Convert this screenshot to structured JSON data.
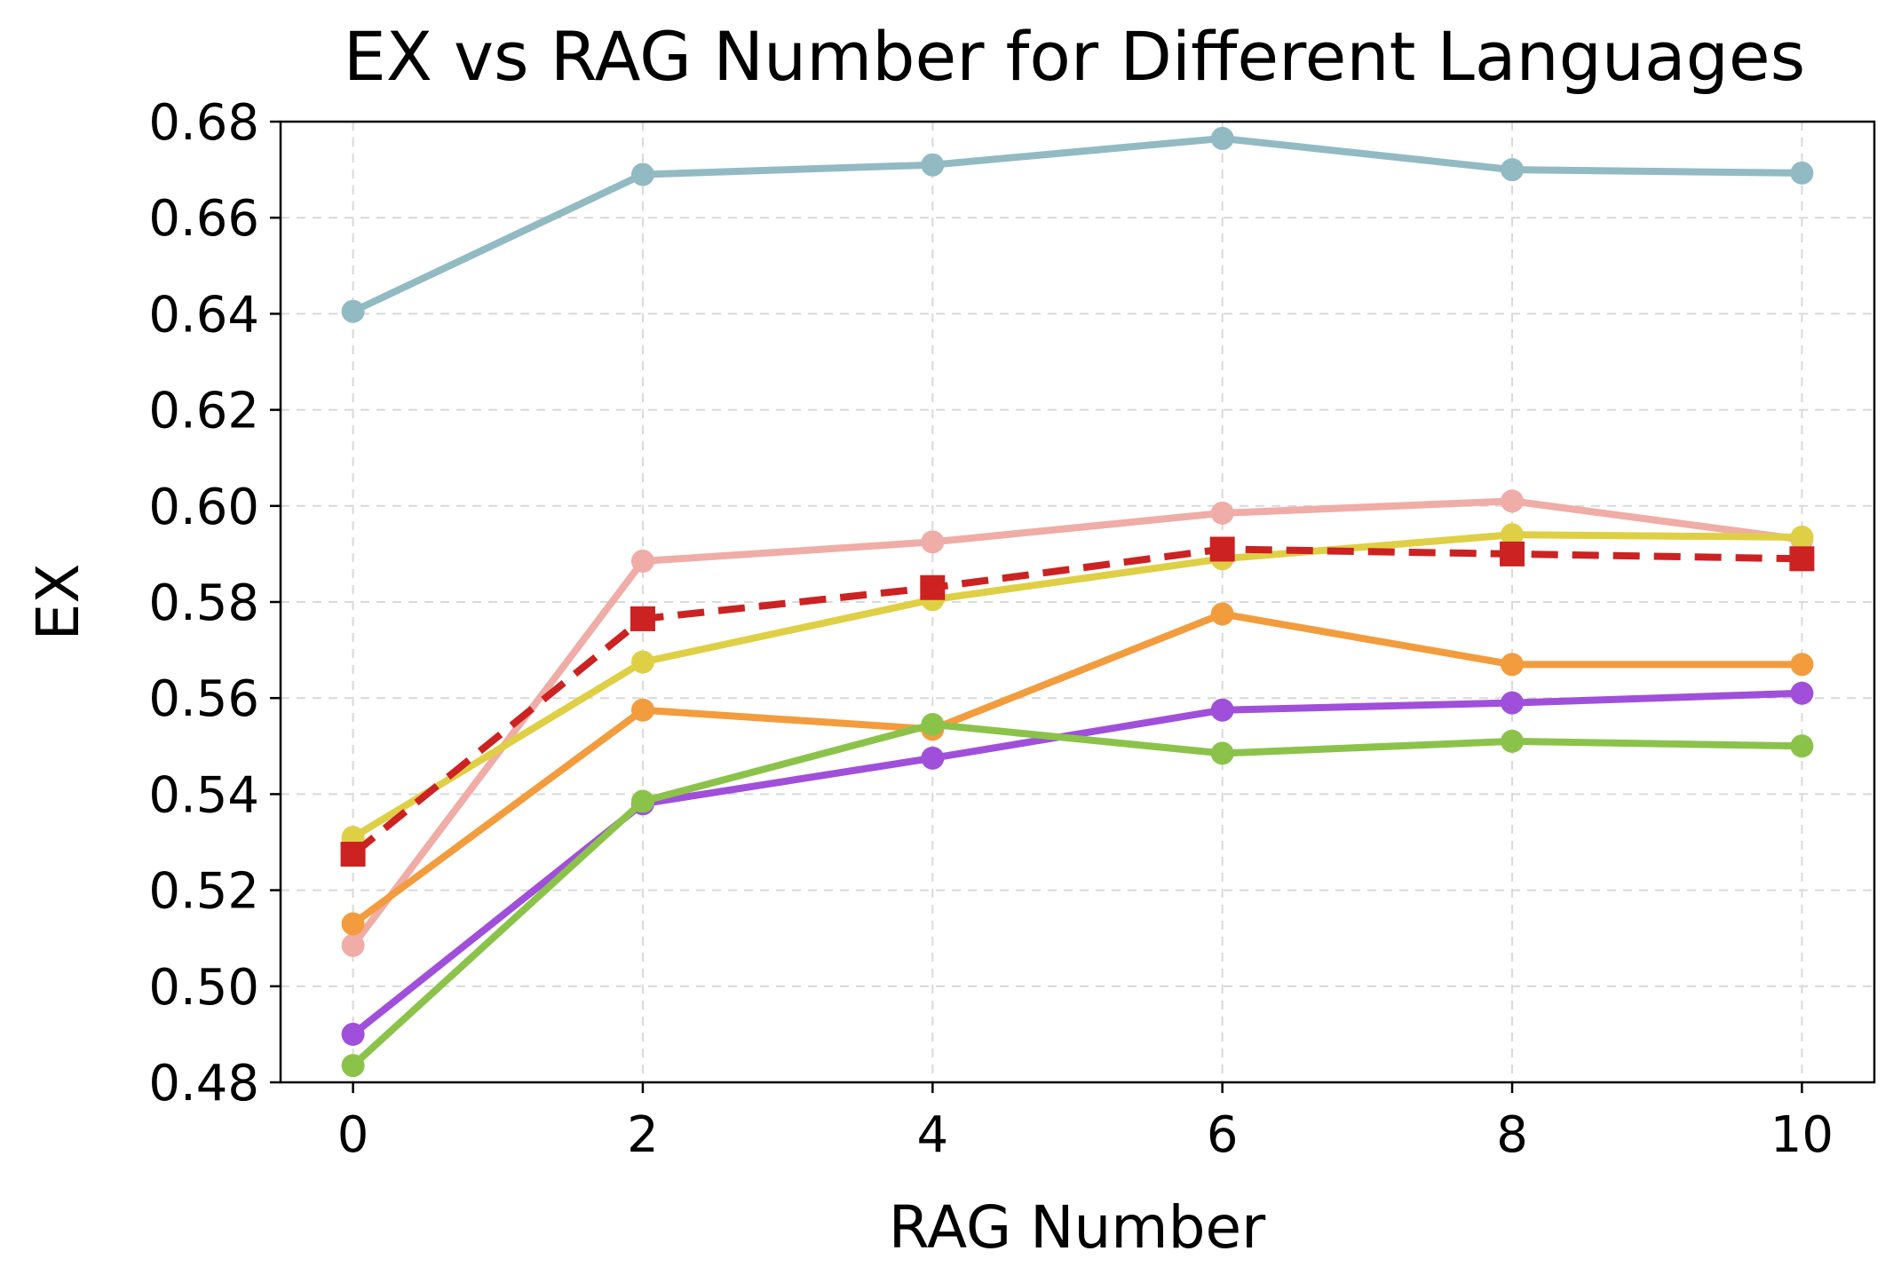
{
  "chart_data": {
    "type": "line",
    "title": "EX vs RAG Number for Different Languages",
    "xlabel": "RAG Number",
    "ylabel": "EX",
    "x": [
      0,
      2,
      4,
      6,
      8,
      10
    ],
    "xlim": [
      -0.5,
      10.5
    ],
    "ylim": [
      0.48,
      0.68
    ],
    "xticks": [
      "0",
      "2",
      "4",
      "6",
      "8",
      "10"
    ],
    "yticks": [
      "0.48",
      "0.50",
      "0.52",
      "0.54",
      "0.56",
      "0.58",
      "0.60",
      "0.62",
      "0.64",
      "0.66",
      "0.68"
    ],
    "grid": true,
    "legend": "none",
    "series": [
      {
        "color": "#92BAC3",
        "marker": "circle",
        "dashed": false,
        "values": [
          0.6405,
          0.669,
          0.671,
          0.6765,
          0.67,
          0.6693
        ]
      },
      {
        "color": "#F0ACA6",
        "marker": "circle",
        "dashed": false,
        "values": [
          0.5085,
          0.5885,
          0.5925,
          0.5985,
          0.601,
          0.593
        ]
      },
      {
        "color": "#DFCF45",
        "marker": "circle",
        "dashed": false,
        "values": [
          0.531,
          0.5675,
          0.5805,
          0.589,
          0.594,
          0.5935
        ]
      },
      {
        "color": "#F39C3D",
        "marker": "circle",
        "dashed": false,
        "values": [
          0.513,
          0.5575,
          0.5535,
          0.5775,
          0.567,
          0.567
        ]
      },
      {
        "color": "#A04FDB",
        "marker": "circle",
        "dashed": false,
        "values": [
          0.49,
          0.538,
          0.5475,
          0.5575,
          0.559,
          0.561
        ]
      },
      {
        "color": "#8BC34A",
        "marker": "circle",
        "dashed": false,
        "values": [
          0.4835,
          0.5385,
          0.5545,
          0.5485,
          0.551,
          0.55
        ]
      },
      {
        "color": "#CC2222",
        "marker": "square",
        "dashed": true,
        "values": [
          0.5275,
          0.5765,
          0.583,
          0.591,
          0.59,
          0.589
        ]
      }
    ]
  }
}
